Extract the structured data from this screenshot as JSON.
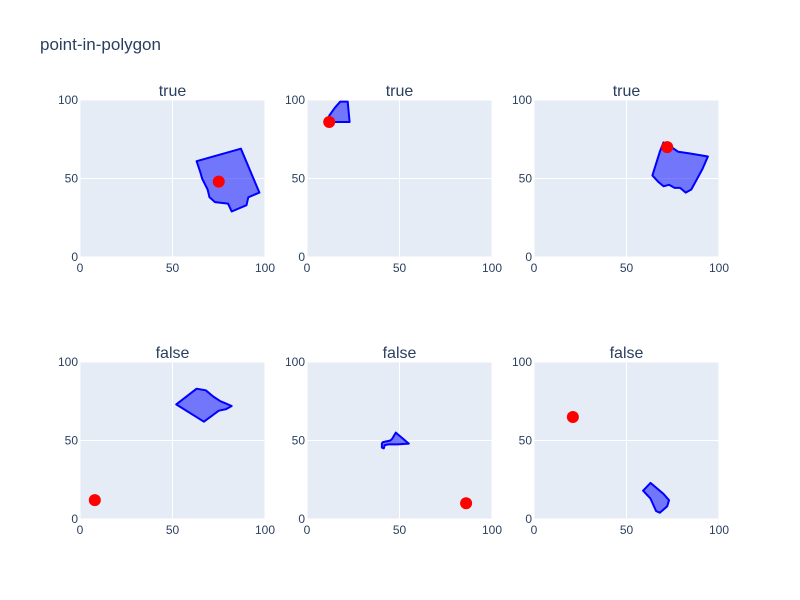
{
  "title": "point-in-polygon",
  "chart_data": [
    {
      "type": "scatter",
      "title": "true",
      "xlim": [
        0,
        100
      ],
      "ylim": [
        0,
        100
      ],
      "xticks": [
        "0",
        "50",
        "100"
      ],
      "yticks": [
        "0",
        "50",
        "100"
      ],
      "grid": true,
      "polygon": [
        [
          63,
          61
        ],
        [
          87,
          69
        ],
        [
          97,
          41
        ],
        [
          91,
          38
        ],
        [
          90,
          33
        ],
        [
          82,
          29
        ],
        [
          80,
          34
        ],
        [
          73,
          35
        ],
        [
          70,
          38
        ],
        [
          69,
          43
        ],
        [
          66,
          50
        ],
        [
          65,
          54
        ]
      ],
      "point": [
        75,
        48
      ],
      "point_color": "#ff0000",
      "polygon_color": "#0000ff"
    },
    {
      "type": "scatter",
      "title": "true",
      "xlim": [
        0,
        100
      ],
      "ylim": [
        0,
        100
      ],
      "xticks": [
        "0",
        "50",
        "100"
      ],
      "yticks": [
        "0",
        "50",
        "100"
      ],
      "grid": true,
      "polygon": [
        [
          12,
          86
        ],
        [
          12,
          90
        ],
        [
          15,
          95
        ],
        [
          18,
          99
        ],
        [
          22,
          99
        ],
        [
          23,
          86
        ]
      ],
      "point": [
        12,
        86
      ],
      "point_color": "#ff0000",
      "polygon_color": "#0000ff"
    },
    {
      "type": "scatter",
      "title": "true",
      "xlim": [
        0,
        100
      ],
      "ylim": [
        0,
        100
      ],
      "xticks": [
        "0",
        "50",
        "100"
      ],
      "yticks": [
        "0",
        "50",
        "100"
      ],
      "grid": true,
      "polygon": [
        [
          68,
          67
        ],
        [
          70,
          73
        ],
        [
          73,
          71
        ],
        [
          78,
          67
        ],
        [
          84,
          66
        ],
        [
          94,
          64
        ],
        [
          91,
          56
        ],
        [
          85,
          43
        ],
        [
          82,
          41
        ],
        [
          79,
          44
        ],
        [
          76,
          44
        ],
        [
          73,
          46
        ],
        [
          70,
          45
        ],
        [
          67,
          48
        ],
        [
          64,
          52
        ]
      ],
      "point": [
        72,
        70
      ],
      "point_color": "#ff0000",
      "polygon_color": "#0000ff"
    },
    {
      "type": "scatter",
      "title": "false",
      "xlim": [
        0,
        100
      ],
      "ylim": [
        0,
        100
      ],
      "xticks": [
        "0",
        "50",
        "100"
      ],
      "yticks": [
        "0",
        "50",
        "100"
      ],
      "grid": true,
      "polygon": [
        [
          52,
          73
        ],
        [
          63,
          83
        ],
        [
          68,
          82
        ],
        [
          72,
          78
        ],
        [
          76,
          75
        ],
        [
          78,
          74
        ],
        [
          82,
          72
        ],
        [
          79,
          70
        ],
        [
          75,
          69
        ],
        [
          67,
          62
        ]
      ],
      "point": [
        8,
        12
      ],
      "point_color": "#ff0000",
      "polygon_color": "#0000ff"
    },
    {
      "type": "scatter",
      "title": "false",
      "xlim": [
        0,
        100
      ],
      "ylim": [
        0,
        100
      ],
      "xticks": [
        "0",
        "50",
        "100"
      ],
      "yticks": [
        "0",
        "50",
        "100"
      ],
      "grid": true,
      "polygon": [
        [
          41,
          49
        ],
        [
          45,
          50
        ],
        [
          46,
          51
        ],
        [
          48,
          55
        ],
        [
          50,
          53
        ],
        [
          52,
          51
        ],
        [
          55,
          48
        ],
        [
          49,
          47.5
        ],
        [
          44,
          47.5
        ],
        [
          42,
          47
        ],
        [
          41.5,
          45
        ],
        [
          40.5,
          45.5
        ],
        [
          40.5,
          48
        ]
      ],
      "point": [
        86,
        10
      ],
      "point_color": "#ff0000",
      "polygon_color": "#0000ff"
    },
    {
      "type": "scatter",
      "title": "false",
      "xlim": [
        0,
        100
      ],
      "ylim": [
        0,
        100
      ],
      "xticks": [
        "0",
        "50",
        "100"
      ],
      "yticks": [
        "0",
        "50",
        "100"
      ],
      "grid": true,
      "polygon": [
        [
          63,
          23
        ],
        [
          70,
          16
        ],
        [
          73,
          12
        ],
        [
          72,
          8
        ],
        [
          68,
          4
        ],
        [
          66,
          5
        ],
        [
          63,
          13
        ],
        [
          59,
          18
        ]
      ],
      "point": [
        21,
        65
      ],
      "point_color": "#ff0000",
      "polygon_color": "#0000ff"
    }
  ]
}
